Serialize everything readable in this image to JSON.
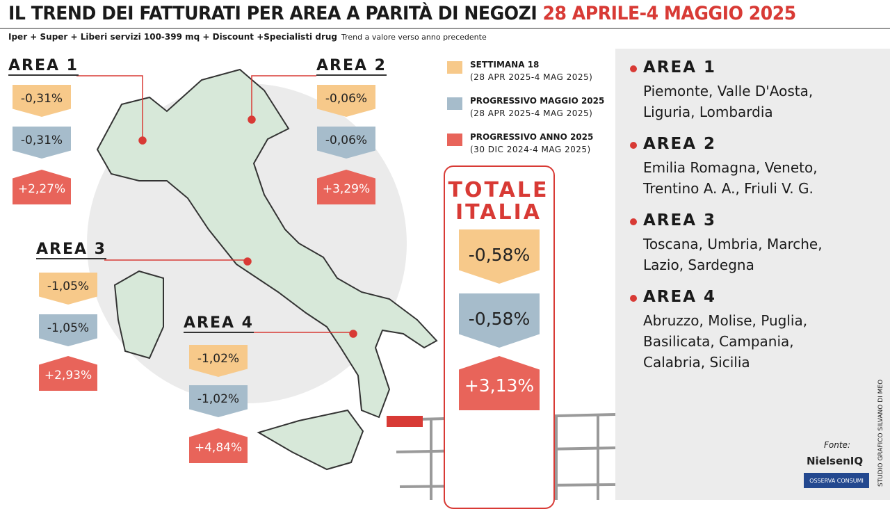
{
  "header": {
    "title": "IL TREND DEI FATTURATI PER AREA A PARITÀ DI NEGOZI",
    "title_date": "28 APRILE-4 MAGGIO 2025",
    "subtitle": "Iper + Super + Liberi servizi 100-399 mq + Discount +Specialisti drug",
    "note": "Trend a valore verso anno precedente"
  },
  "legend": [
    {
      "label": "SETTIMANA 18",
      "period": "(28 APR 2025-4 MAG 2025)"
    },
    {
      "label": "PROGRESSIVO MAGGIO 2025",
      "period": "(28 APR 2025-4 MAG 2025)"
    },
    {
      "label": "PROGRESSIVO ANNO 2025",
      "period": "(30 DIC 2024-4 MAG 2025)"
    }
  ],
  "map_areas": [
    {
      "name": "AREA 1",
      "values": [
        "-0,31%",
        "-0,31%",
        "+2,27%"
      ]
    },
    {
      "name": "AREA 2",
      "values": [
        "-0,06%",
        "-0,06%",
        "+3,29%"
      ]
    },
    {
      "name": "AREA 3",
      "values": [
        "-1,05%",
        "-1,05%",
        "+2,93%"
      ]
    },
    {
      "name": "AREA 4",
      "values": [
        "-1,02%",
        "-1,02%",
        "+4,84%"
      ]
    }
  ],
  "total": {
    "title_line1": "TOTALE",
    "title_line2": "ITALIA",
    "values": [
      "-0,58%",
      "-0,58%",
      "+3,13%"
    ]
  },
  "area_list": [
    {
      "name": "AREA 1",
      "regions": [
        "Piemonte, Valle D'Aosta,",
        "Liguria, Lombardia"
      ]
    },
    {
      "name": "AREA 2",
      "regions": [
        "Emilia Romagna, Veneto,",
        "Trentino A. A., Friuli V. G."
      ]
    },
    {
      "name": "AREA 3",
      "regions": [
        "Toscana, Umbria, Marche,",
        "Lazio, Sardegna"
      ]
    },
    {
      "name": "AREA 4",
      "regions": [
        "Abruzzo, Molise, Puglia,",
        "Basilicata, Campania,",
        "Calabria, Sicilia"
      ]
    }
  ],
  "credit": "STUDIO GRAFICO SILVANO DI MEO",
  "source": {
    "label": "Fonte:",
    "logos": [
      "NielsenIQ",
      "OSSERVA CONSUMI"
    ]
  }
}
